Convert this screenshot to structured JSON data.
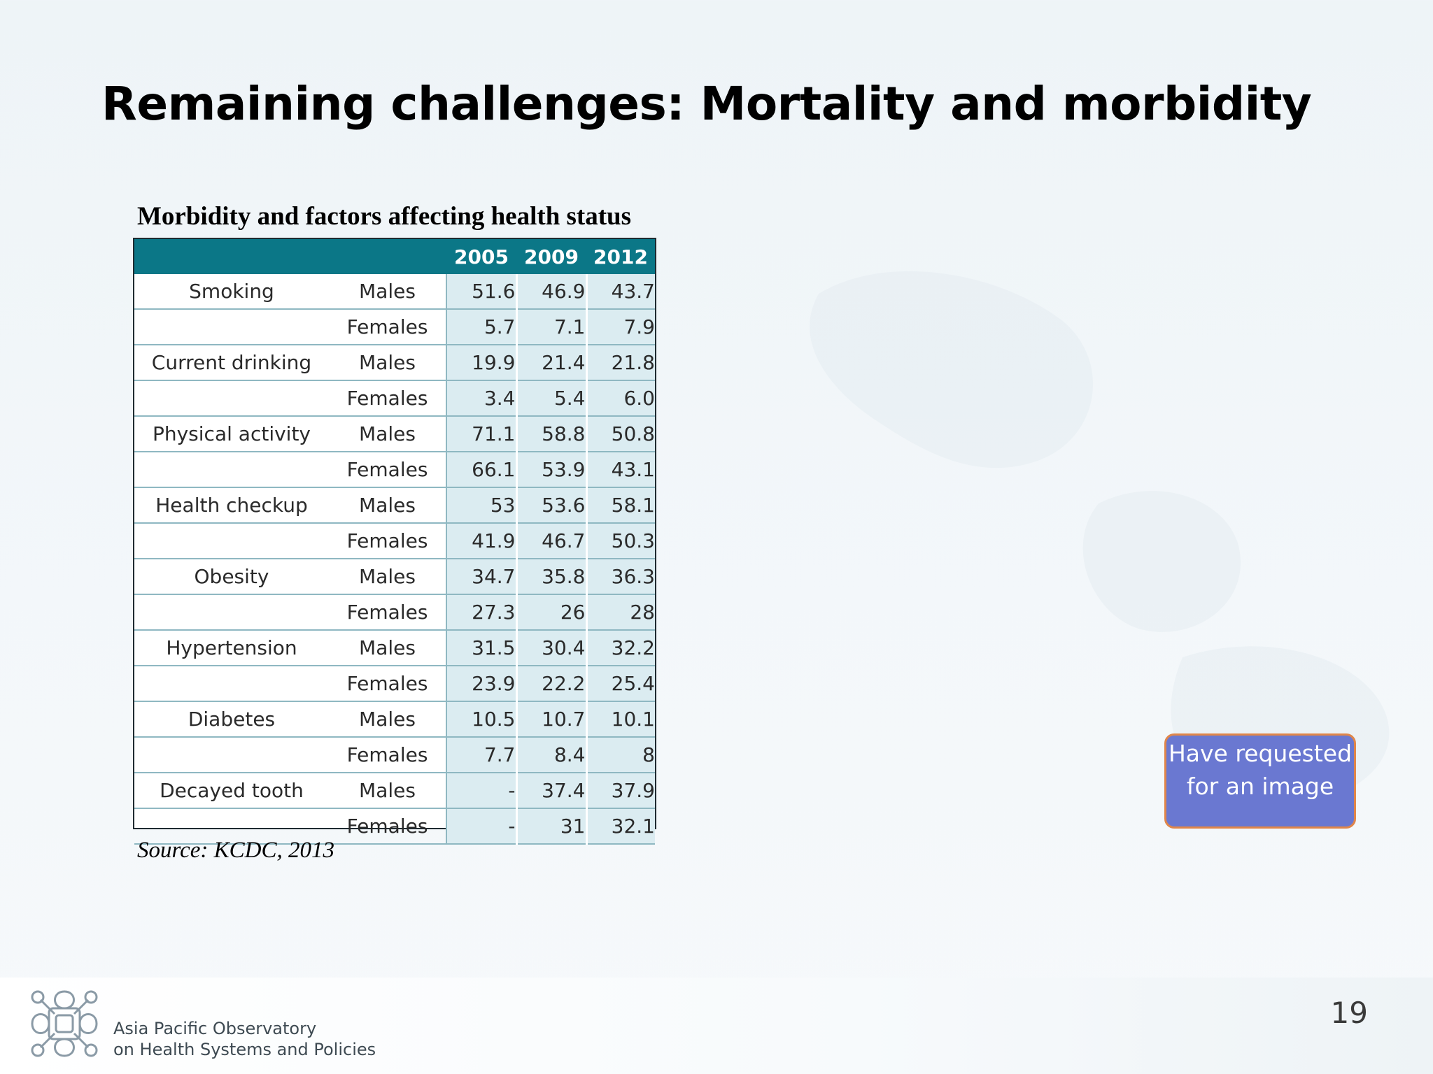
{
  "slide": {
    "title": "Remaining challenges: Mortality and morbidity",
    "page_number": "19"
  },
  "table": {
    "caption": "Morbidity and factors affecting health status",
    "header_color": "#0b7787",
    "columns": [
      "",
      "",
      "2005",
      "2009",
      "2012"
    ],
    "rows": [
      {
        "measure": "Smoking",
        "sex": "Males",
        "v2005": "51.6",
        "v2009": "46.9",
        "v2012": "43.7"
      },
      {
        "measure": "",
        "sex": "Females",
        "v2005": "5.7",
        "v2009": "7.1",
        "v2012": "7.9"
      },
      {
        "measure": "Current drinking",
        "sex": "Males",
        "v2005": "19.9",
        "v2009": "21.4",
        "v2012": "21.8"
      },
      {
        "measure": "",
        "sex": "Females",
        "v2005": "3.4",
        "v2009": "5.4",
        "v2012": "6.0"
      },
      {
        "measure": "Physical activity",
        "sex": "Males",
        "v2005": "71.1",
        "v2009": "58.8",
        "v2012": "50.8"
      },
      {
        "measure": "",
        "sex": "Females",
        "v2005": "66.1",
        "v2009": "53.9",
        "v2012": "43.1"
      },
      {
        "measure": "Health checkup",
        "sex": "Males",
        "v2005": "53",
        "v2009": "53.6",
        "v2012": "58.1"
      },
      {
        "measure": "",
        "sex": "Females",
        "v2005": "41.9",
        "v2009": "46.7",
        "v2012": "50.3"
      },
      {
        "measure": "Obesity",
        "sex": "Males",
        "v2005": "34.7",
        "v2009": "35.8",
        "v2012": "36.3"
      },
      {
        "measure": "",
        "sex": "Females",
        "v2005": "27.3",
        "v2009": "26",
        "v2012": "28"
      },
      {
        "measure": "Hypertension",
        "sex": "Males",
        "v2005": "31.5",
        "v2009": "30.4",
        "v2012": "32.2"
      },
      {
        "measure": "",
        "sex": "Females",
        "v2005": "23.9",
        "v2009": "22.2",
        "v2012": "25.4"
      },
      {
        "measure": "Diabetes",
        "sex": "Males",
        "v2005": "10.5",
        "v2009": "10.7",
        "v2012": "10.1"
      },
      {
        "measure": "",
        "sex": "Females",
        "v2005": "7.7",
        "v2009": "8.4",
        "v2012": "8"
      },
      {
        "measure": "Decayed tooth",
        "sex": "Males",
        "v2005": "-",
        "v2009": "37.4",
        "v2012": "37.9"
      },
      {
        "measure": "",
        "sex": "Females",
        "v2005": "-",
        "v2009": "31",
        "v2012": "32.1"
      }
    ],
    "source": "Source: KCDC, 2013"
  },
  "note_box": {
    "text": "Have requested for an image",
    "fill_color": "#6a78d1",
    "border_color": "#e0864a"
  },
  "footer": {
    "org_line1": "Asia Pacific Observatory",
    "org_line2": "on Health Systems and Policies",
    "logo_icon": "observatory-knot-logo-icon"
  }
}
